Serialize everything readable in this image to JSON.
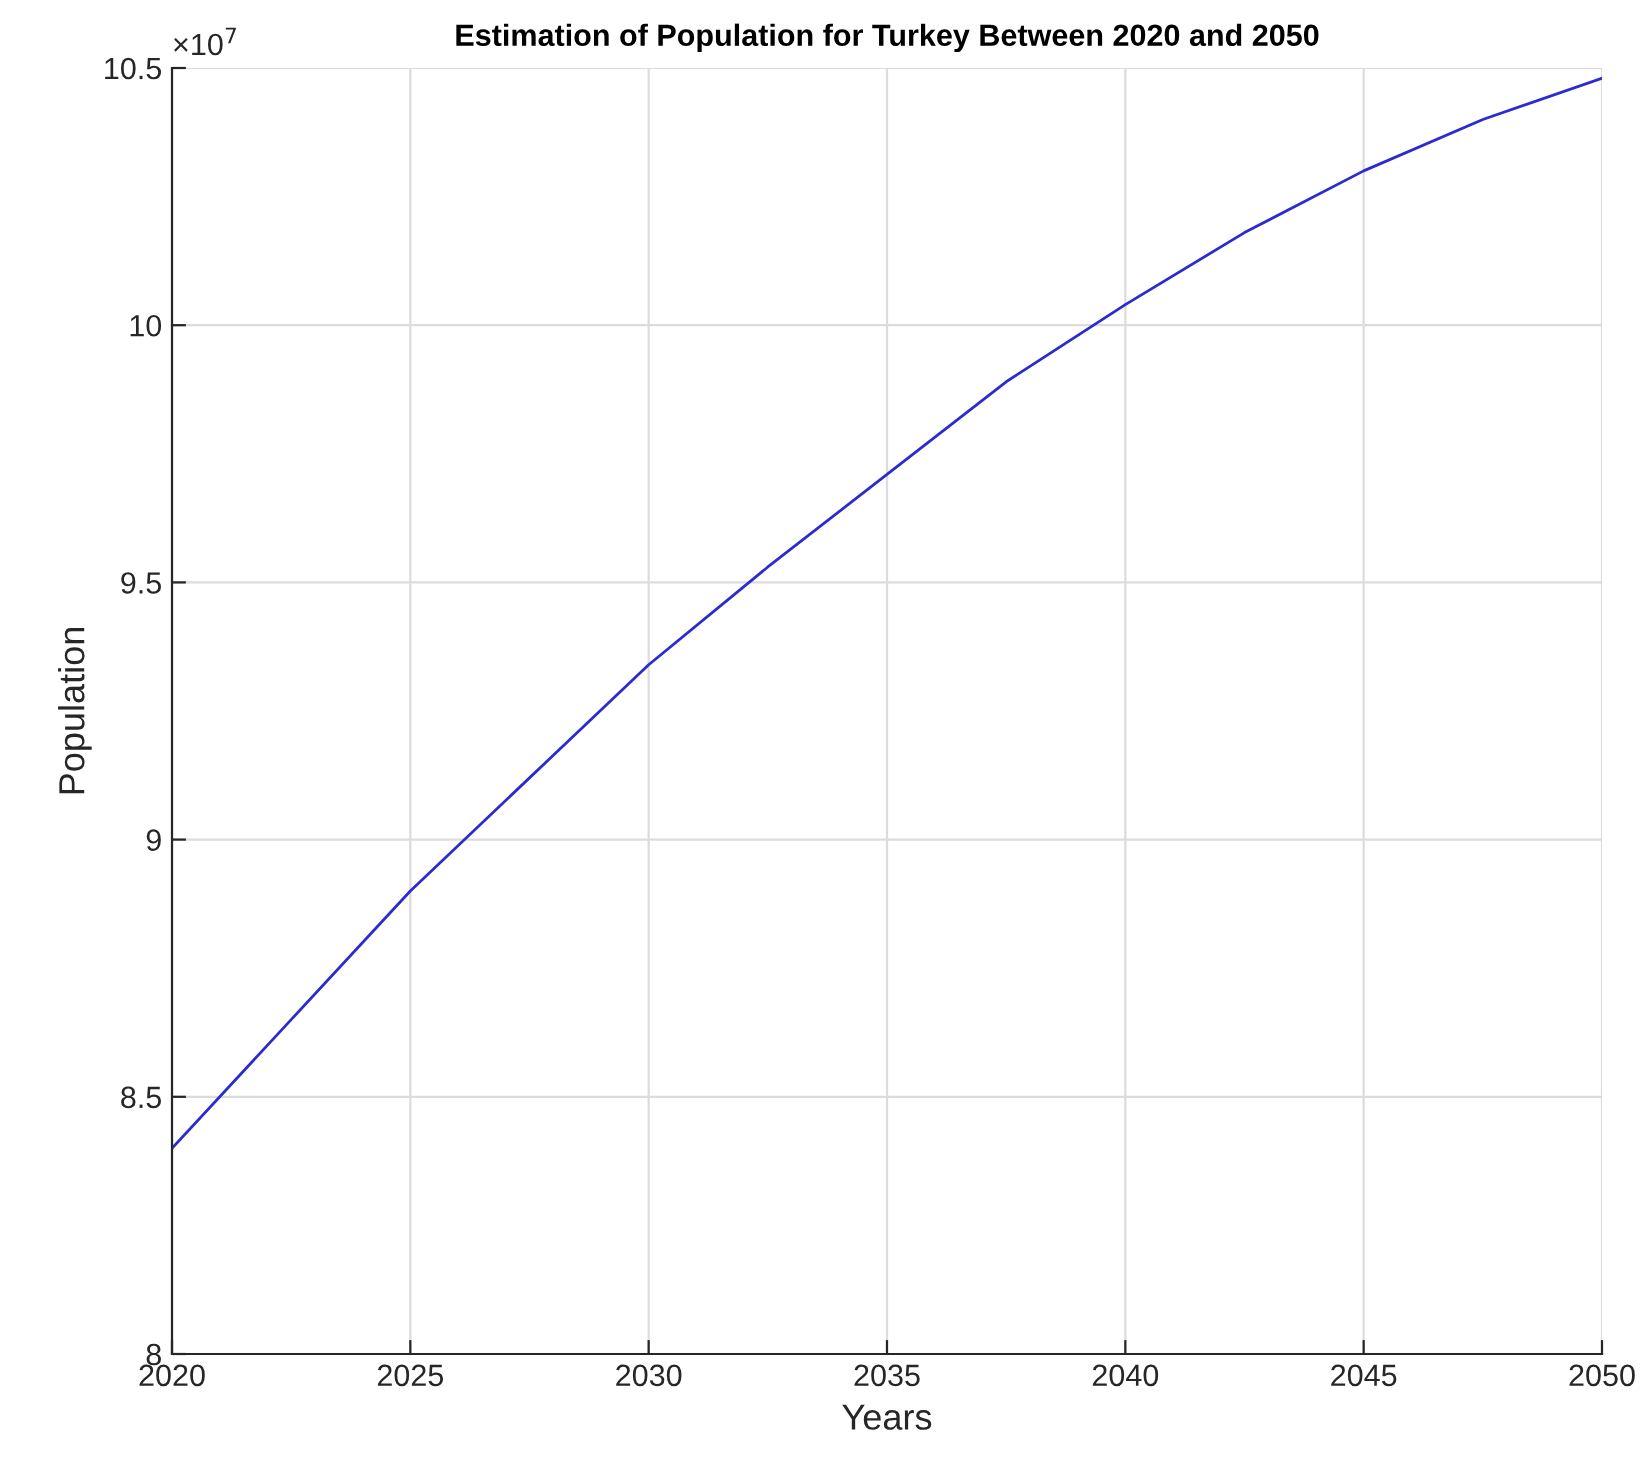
{
  "chart_data": {
    "type": "line",
    "title": "Estimation of Population for Turkey Between 2020 and 2050",
    "xlabel": "Years",
    "ylabel": "Population",
    "annotations": [
      "×10$^{7}$"
    ],
    "x": [
      2020,
      2022.5,
      2025,
      2027.5,
      2030,
      2032.5,
      2035,
      2037.5,
      2040,
      2042.5,
      2045,
      2047.5,
      2050
    ],
    "series": [
      {
        "color": "#2b2bd0",
        "values": [
          8.4,
          8.65,
          8.9,
          9.12,
          9.34,
          9.53,
          9.71,
          9.89,
          10.04,
          10.18,
          10.3,
          10.4,
          10.48
        ]
      }
    ],
    "xlim": [
      2020,
      2050
    ],
    "xticks": [
      2020,
      2025,
      2030,
      2035,
      2040,
      2045,
      2050
    ],
    "ylim": [
      8,
      10.5
    ],
    "yticks": [
      8,
      8.5,
      9,
      9.5,
      10,
      10.5
    ],
    "grid": true,
    "marker": "none",
    "line_style": "solid"
  }
}
